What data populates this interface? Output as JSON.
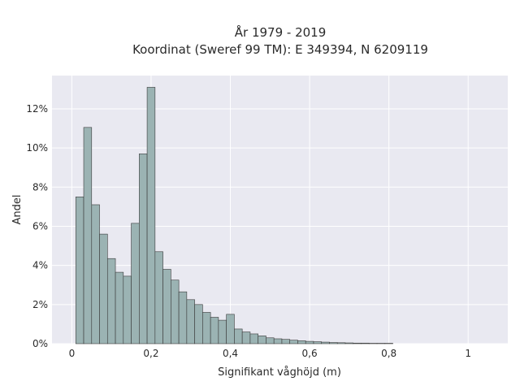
{
  "chart_data": {
    "type": "bar",
    "title": "År 1979 - 2019",
    "subtitle": "Koordinat (Sweref 99 TM): E 349394, N 6209119",
    "xlabel": "Signifikant våghöjd (m)",
    "ylabel": "Andel",
    "xlim": [
      -0.05,
      1.1
    ],
    "ylim": [
      0,
      13.7
    ],
    "x_ticks": [
      0,
      0.2,
      0.4,
      0.6,
      0.8,
      1
    ],
    "x_tick_labels": [
      "0",
      "0,2",
      "0,4",
      "0,6",
      "0,8",
      "1"
    ],
    "y_ticks": [
      0,
      2,
      4,
      6,
      8,
      10,
      12
    ],
    "y_tick_labels": [
      "0%",
      "2%",
      "4%",
      "6%",
      "8%",
      "10%",
      "12%"
    ],
    "grid": true,
    "bin_width": 0.02,
    "bin_start": 0.01,
    "values": [
      7.5,
      11.05,
      7.1,
      5.6,
      4.35,
      3.65,
      3.45,
      6.15,
      9.7,
      13.1,
      4.7,
      3.8,
      3.25,
      2.65,
      2.25,
      2.0,
      1.6,
      1.35,
      1.2,
      1.5,
      0.75,
      0.6,
      0.5,
      0.4,
      0.3,
      0.25,
      0.22,
      0.18,
      0.15,
      0.12,
      0.1,
      0.08,
      0.06,
      0.05,
      0.04,
      0.03,
      0.03,
      0.02,
      0.02,
      0.02
    ],
    "colors": {
      "bar_fill": "#9bb3b3",
      "bar_stroke": "#3a3a3a",
      "plot_bg": "#e9e9f1",
      "grid": "#ffffff"
    }
  }
}
